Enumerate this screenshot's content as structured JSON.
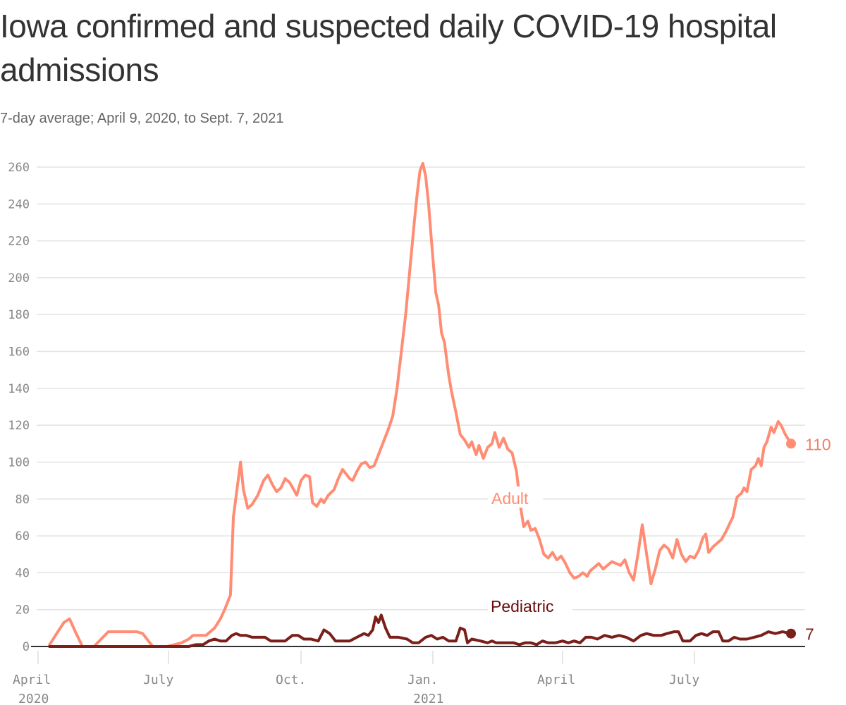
{
  "header": {
    "title": "Iowa confirmed and suspected daily COVID-19 hospital admissions",
    "subtitle": "7-day average; April 9, 2020, to Sept. 7, 2021"
  },
  "colors": {
    "adult": "#ff8c73",
    "pediatric": "#7a1f1a",
    "adult_label": "#ff8c73",
    "pediatric_label": "#6b0a0a",
    "adult_end_label": "#f0806a",
    "pediatric_end_label": "#7a1f1a"
  },
  "chart_data": {
    "type": "line",
    "title": "Iowa confirmed and suspected daily COVID-19 hospital admissions",
    "subtitle": "7-day average; April 9, 2020, to Sept. 7, 2021",
    "xlabel": "",
    "ylabel": "",
    "ylim": [
      0,
      260
    ],
    "yticks": [
      0,
      20,
      40,
      60,
      80,
      100,
      120,
      140,
      160,
      180,
      200,
      220,
      240,
      260
    ],
    "xticks": [
      {
        "label": "April",
        "sub": "2020",
        "date": "2020-04-01"
      },
      {
        "label": "July",
        "sub": "",
        "date": "2020-07-01"
      },
      {
        "label": "Oct.",
        "sub": "",
        "date": "2020-10-01"
      },
      {
        "label": "Jan.",
        "sub": "2021",
        "date": "2021-01-01"
      },
      {
        "label": "April",
        "sub": "",
        "date": "2021-04-01"
      },
      {
        "label": "July",
        "sub": "",
        "date": "2021-07-01"
      }
    ],
    "grid": true,
    "legend": "inline labels",
    "series": [
      {
        "name": "Adult",
        "end_label": "110",
        "end_value": 110,
        "points": [
          [
            "2020-04-09",
            1
          ],
          [
            "2020-04-14",
            7
          ],
          [
            "2020-04-19",
            13
          ],
          [
            "2020-04-23",
            15
          ],
          [
            "2020-04-27",
            8
          ],
          [
            "2020-05-02",
            0
          ],
          [
            "2020-05-10",
            0
          ],
          [
            "2020-05-15",
            4
          ],
          [
            "2020-05-20",
            8
          ],
          [
            "2020-05-27",
            8
          ],
          [
            "2020-06-03",
            8
          ],
          [
            "2020-06-09",
            8
          ],
          [
            "2020-06-13",
            7
          ],
          [
            "2020-06-20",
            0
          ],
          [
            "2020-06-30",
            0
          ],
          [
            "2020-07-05",
            1
          ],
          [
            "2020-07-10",
            2
          ],
          [
            "2020-07-15",
            4
          ],
          [
            "2020-07-18",
            6
          ],
          [
            "2020-07-23",
            6
          ],
          [
            "2020-07-27",
            6
          ],
          [
            "2020-08-02",
            10
          ],
          [
            "2020-08-06",
            15
          ],
          [
            "2020-08-09",
            20
          ],
          [
            "2020-08-11",
            24
          ],
          [
            "2020-08-13",
            28
          ],
          [
            "2020-08-15",
            70
          ],
          [
            "2020-08-18",
            88
          ],
          [
            "2020-08-20",
            100
          ],
          [
            "2020-08-22",
            85
          ],
          [
            "2020-08-25",
            75
          ],
          [
            "2020-08-28",
            77
          ],
          [
            "2020-09-01",
            82
          ],
          [
            "2020-09-05",
            90
          ],
          [
            "2020-09-08",
            93
          ],
          [
            "2020-09-11",
            88
          ],
          [
            "2020-09-14",
            84
          ],
          [
            "2020-09-17",
            86
          ],
          [
            "2020-09-20",
            91
          ],
          [
            "2020-09-23",
            89
          ],
          [
            "2020-09-26",
            85
          ],
          [
            "2020-09-28",
            82
          ],
          [
            "2020-10-01",
            90
          ],
          [
            "2020-10-04",
            93
          ],
          [
            "2020-10-07",
            92
          ],
          [
            "2020-10-09",
            78
          ],
          [
            "2020-10-12",
            76
          ],
          [
            "2020-10-15",
            80
          ],
          [
            "2020-10-17",
            78
          ],
          [
            "2020-10-20",
            82
          ],
          [
            "2020-10-24",
            85
          ],
          [
            "2020-10-27",
            91
          ],
          [
            "2020-10-30",
            96
          ],
          [
            "2020-11-01",
            94
          ],
          [
            "2020-11-04",
            91
          ],
          [
            "2020-11-06",
            90
          ],
          [
            "2020-11-09",
            95
          ],
          [
            "2020-11-12",
            99
          ],
          [
            "2020-11-15",
            100
          ],
          [
            "2020-11-18",
            97
          ],
          [
            "2020-11-21",
            98
          ],
          [
            "2020-11-24",
            104
          ],
          [
            "2020-11-27",
            110
          ],
          [
            "2020-12-01",
            118
          ],
          [
            "2020-12-04",
            125
          ],
          [
            "2020-12-07",
            140
          ],
          [
            "2020-12-10",
            160
          ],
          [
            "2020-12-13",
            180
          ],
          [
            "2020-12-16",
            205
          ],
          [
            "2020-12-19",
            230
          ],
          [
            "2020-12-21",
            245
          ],
          [
            "2020-12-23",
            258
          ],
          [
            "2020-12-25",
            262
          ],
          [
            "2020-12-27",
            255
          ],
          [
            "2020-12-29",
            240
          ],
          [
            "2020-12-31",
            220
          ],
          [
            "2021-01-03",
            192
          ],
          [
            "2021-01-05",
            185
          ],
          [
            "2021-01-07",
            170
          ],
          [
            "2021-01-09",
            165
          ],
          [
            "2021-01-12",
            147
          ],
          [
            "2021-01-14",
            138
          ],
          [
            "2021-01-17",
            127
          ],
          [
            "2021-01-20",
            115
          ],
          [
            "2021-01-23",
            112
          ],
          [
            "2021-01-26",
            108
          ],
          [
            "2021-01-28",
            111
          ],
          [
            "2021-01-31",
            104
          ],
          [
            "2021-02-02",
            109
          ],
          [
            "2021-02-05",
            102
          ],
          [
            "2021-02-08",
            108
          ],
          [
            "2021-02-11",
            110
          ],
          [
            "2021-02-13",
            116
          ],
          [
            "2021-02-16",
            108
          ],
          [
            "2021-02-19",
            113
          ],
          [
            "2021-02-22",
            107
          ],
          [
            "2021-02-25",
            105
          ],
          [
            "2021-02-28",
            95
          ],
          [
            "2021-03-03",
            75
          ],
          [
            "2021-03-05",
            65
          ],
          [
            "2021-03-08",
            68
          ],
          [
            "2021-03-10",
            63
          ],
          [
            "2021-03-13",
            64
          ],
          [
            "2021-03-16",
            58
          ],
          [
            "2021-03-19",
            50
          ],
          [
            "2021-03-22",
            48
          ],
          [
            "2021-03-25",
            51
          ],
          [
            "2021-03-28",
            47
          ],
          [
            "2021-03-31",
            49
          ],
          [
            "2021-04-03",
            45
          ],
          [
            "2021-04-06",
            40
          ],
          [
            "2021-04-09",
            37
          ],
          [
            "2021-04-12",
            38
          ],
          [
            "2021-04-15",
            40
          ],
          [
            "2021-04-18",
            38
          ],
          [
            "2021-04-20",
            41
          ],
          [
            "2021-04-23",
            43
          ],
          [
            "2021-04-26",
            45
          ],
          [
            "2021-04-29",
            42
          ],
          [
            "2021-05-02",
            44
          ],
          [
            "2021-05-05",
            46
          ],
          [
            "2021-05-08",
            45
          ],
          [
            "2021-05-11",
            44
          ],
          [
            "2021-05-14",
            47
          ],
          [
            "2021-05-17",
            40
          ],
          [
            "2021-05-20",
            36
          ],
          [
            "2021-05-23",
            50
          ],
          [
            "2021-05-26",
            66
          ],
          [
            "2021-05-29",
            50
          ],
          [
            "2021-06-01",
            34
          ],
          [
            "2021-06-04",
            42
          ],
          [
            "2021-06-07",
            52
          ],
          [
            "2021-06-10",
            55
          ],
          [
            "2021-06-13",
            53
          ],
          [
            "2021-06-16",
            48
          ],
          [
            "2021-06-19",
            58
          ],
          [
            "2021-06-22",
            50
          ],
          [
            "2021-06-25",
            46
          ],
          [
            "2021-06-28",
            49
          ],
          [
            "2021-07-01",
            48
          ],
          [
            "2021-07-04",
            52
          ],
          [
            "2021-07-07",
            59
          ],
          [
            "2021-07-09",
            61
          ],
          [
            "2021-07-11",
            51
          ],
          [
            "2021-07-14",
            54
          ],
          [
            "2021-07-17",
            56
          ],
          [
            "2021-07-20",
            58
          ],
          [
            "2021-07-23",
            62
          ],
          [
            "2021-07-26",
            67
          ],
          [
            "2021-07-28",
            70
          ],
          [
            "2021-07-31",
            81
          ],
          [
            "2021-08-03",
            83
          ],
          [
            "2021-08-05",
            86
          ],
          [
            "2021-08-07",
            84
          ],
          [
            "2021-08-10",
            96
          ],
          [
            "2021-08-13",
            98
          ],
          [
            "2021-08-15",
            102
          ],
          [
            "2021-08-17",
            98
          ],
          [
            "2021-08-19",
            108
          ],
          [
            "2021-08-21",
            111
          ],
          [
            "2021-08-24",
            119
          ],
          [
            "2021-08-26",
            116
          ],
          [
            "2021-08-29",
            122
          ],
          [
            "2021-08-31",
            120
          ],
          [
            "2021-09-03",
            115
          ],
          [
            "2021-09-07",
            110
          ]
        ]
      },
      {
        "name": "Pediatric",
        "end_label": "7",
        "end_value": 7,
        "points": [
          [
            "2020-04-09",
            0
          ],
          [
            "2020-07-15",
            0
          ],
          [
            "2020-07-20",
            1
          ],
          [
            "2020-07-25",
            1
          ],
          [
            "2020-07-29",
            3
          ],
          [
            "2020-08-02",
            4
          ],
          [
            "2020-08-06",
            3
          ],
          [
            "2020-08-10",
            3
          ],
          [
            "2020-08-14",
            6
          ],
          [
            "2020-08-17",
            7
          ],
          [
            "2020-08-20",
            6
          ],
          [
            "2020-08-24",
            6
          ],
          [
            "2020-08-28",
            5
          ],
          [
            "2020-09-02",
            5
          ],
          [
            "2020-09-06",
            5
          ],
          [
            "2020-09-10",
            3
          ],
          [
            "2020-09-15",
            3
          ],
          [
            "2020-09-20",
            3
          ],
          [
            "2020-09-25",
            6
          ],
          [
            "2020-09-29",
            6
          ],
          [
            "2020-10-03",
            4
          ],
          [
            "2020-10-08",
            4
          ],
          [
            "2020-10-13",
            3
          ],
          [
            "2020-10-17",
            9
          ],
          [
            "2020-10-21",
            7
          ],
          [
            "2020-10-25",
            3
          ],
          [
            "2020-10-30",
            3
          ],
          [
            "2020-11-04",
            3
          ],
          [
            "2020-11-09",
            5
          ],
          [
            "2020-11-14",
            7
          ],
          [
            "2020-11-17",
            6
          ],
          [
            "2020-11-20",
            9
          ],
          [
            "2020-11-22",
            16
          ],
          [
            "2020-11-24",
            13
          ],
          [
            "2020-11-26",
            17
          ],
          [
            "2020-11-29",
            10
          ],
          [
            "2020-12-02",
            5
          ],
          [
            "2020-12-08",
            5
          ],
          [
            "2020-12-14",
            4
          ],
          [
            "2020-12-18",
            2
          ],
          [
            "2020-12-22",
            2
          ],
          [
            "2020-12-27",
            5
          ],
          [
            "2020-12-31",
            6
          ],
          [
            "2021-01-04",
            4
          ],
          [
            "2021-01-08",
            5
          ],
          [
            "2021-01-12",
            3
          ],
          [
            "2021-01-17",
            3
          ],
          [
            "2021-01-20",
            10
          ],
          [
            "2021-01-23",
            9
          ],
          [
            "2021-01-25",
            2
          ],
          [
            "2021-01-28",
            4
          ],
          [
            "2021-02-03",
            3
          ],
          [
            "2021-02-08",
            2
          ],
          [
            "2021-02-11",
            3
          ],
          [
            "2021-02-14",
            2
          ],
          [
            "2021-02-20",
            2
          ],
          [
            "2021-02-26",
            2
          ],
          [
            "2021-03-02",
            1
          ],
          [
            "2021-03-06",
            2
          ],
          [
            "2021-03-10",
            2
          ],
          [
            "2021-03-14",
            1
          ],
          [
            "2021-03-18",
            3
          ],
          [
            "2021-03-22",
            2
          ],
          [
            "2021-03-27",
            2
          ],
          [
            "2021-04-01",
            3
          ],
          [
            "2021-04-05",
            2
          ],
          [
            "2021-04-09",
            3
          ],
          [
            "2021-04-13",
            2
          ],
          [
            "2021-04-17",
            5
          ],
          [
            "2021-04-21",
            5
          ],
          [
            "2021-04-25",
            4
          ],
          [
            "2021-04-30",
            6
          ],
          [
            "2021-05-05",
            5
          ],
          [
            "2021-05-10",
            6
          ],
          [
            "2021-05-15",
            5
          ],
          [
            "2021-05-20",
            3
          ],
          [
            "2021-05-25",
            6
          ],
          [
            "2021-05-29",
            7
          ],
          [
            "2021-06-03",
            6
          ],
          [
            "2021-06-08",
            6
          ],
          [
            "2021-06-12",
            7
          ],
          [
            "2021-06-17",
            8
          ],
          [
            "2021-06-20",
            8
          ],
          [
            "2021-06-23",
            3
          ],
          [
            "2021-06-28",
            3
          ],
          [
            "2021-07-02",
            6
          ],
          [
            "2021-07-06",
            7
          ],
          [
            "2021-07-10",
            6
          ],
          [
            "2021-07-14",
            8
          ],
          [
            "2021-07-18",
            8
          ],
          [
            "2021-07-21",
            3
          ],
          [
            "2021-07-25",
            3
          ],
          [
            "2021-07-29",
            5
          ],
          [
            "2021-08-02",
            4
          ],
          [
            "2021-08-07",
            4
          ],
          [
            "2021-08-12",
            5
          ],
          [
            "2021-08-17",
            6
          ],
          [
            "2021-08-22",
            8
          ],
          [
            "2021-08-27",
            7
          ],
          [
            "2021-09-01",
            8
          ],
          [
            "2021-09-07",
            7
          ]
        ]
      }
    ]
  }
}
